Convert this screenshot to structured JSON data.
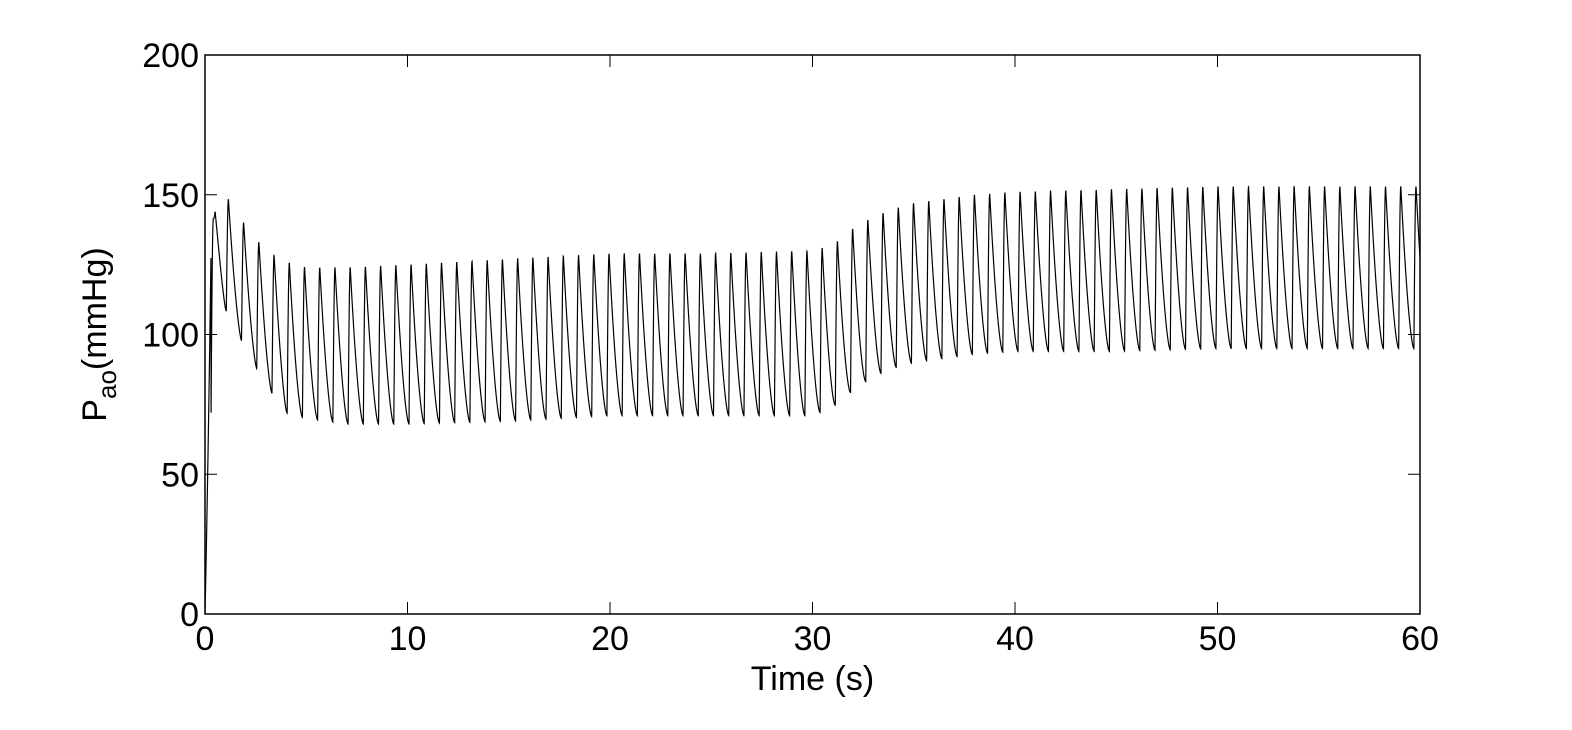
{
  "chart_data": {
    "type": "line",
    "title": "",
    "xlabel": "Time (s)",
    "ylabel": {
      "symbol": "P",
      "subscript": "ao",
      "unit": "(mmHg)"
    },
    "xlim": [
      0,
      60
    ],
    "ylim": [
      0,
      200
    ],
    "xticks": [
      0,
      10,
      20,
      30,
      40,
      50,
      60
    ],
    "yticks": [
      0,
      50,
      100,
      150,
      200
    ],
    "grid": false,
    "line_color": "#000000",
    "heart_rate_hz": 1.33,
    "envelope": {
      "t": [
        0,
        0.5,
        1,
        2,
        3,
        4,
        5,
        6,
        7,
        10,
        15,
        20,
        25,
        30,
        31,
        32,
        33,
        34,
        35,
        36,
        38,
        40,
        45,
        50,
        55,
        60
      ],
      "systolic": [
        100,
        151,
        150,
        139,
        130,
        126,
        124,
        124,
        124,
        125,
        127,
        129,
        129,
        130,
        132,
        138,
        142,
        145,
        147,
        148,
        150,
        151,
        152,
        153,
        153,
        153
      ],
      "diastolic": [
        0,
        120,
        109,
        95,
        82,
        72,
        70,
        69,
        68,
        68,
        69,
        71,
        71,
        71,
        74,
        80,
        85,
        88,
        90,
        91,
        93,
        94,
        94,
        95,
        95,
        95
      ]
    }
  }
}
